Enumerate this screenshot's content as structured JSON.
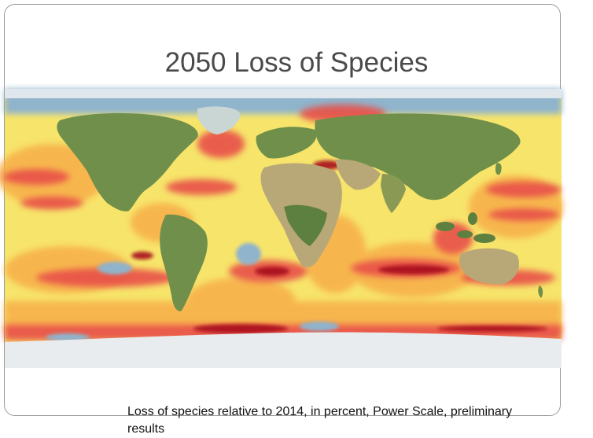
{
  "slide": {
    "title": "2050 Loss of Species",
    "caption": "Loss of species relative to 2014, in percent, Power Scale, preliminary results"
  },
  "map": {
    "colors": {
      "ocean_low": "#f7e46a",
      "ocean_mid": "#f7b04a",
      "ocean_high": "#e8504a",
      "ocean_extreme": "#a8101e",
      "no_data": "#8fb4cc",
      "land": "#6f8f4a",
      "desert": "#b9a877",
      "ice": "#e8ecee"
    }
  }
}
